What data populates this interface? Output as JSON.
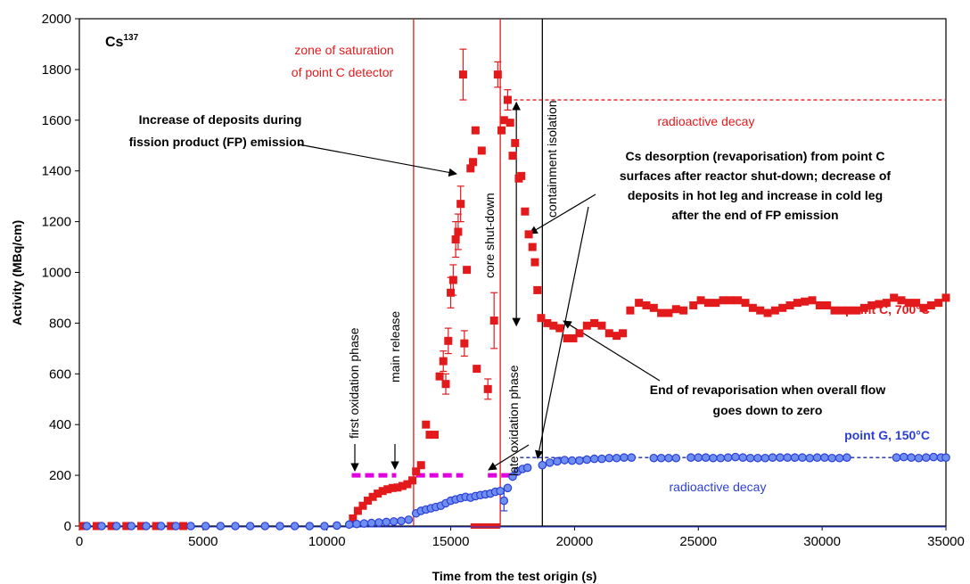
{
  "chart_data": {
    "type": "scatter",
    "title": "Cs",
    "title_superscript": "137",
    "xlabel": "Time from the test origin (s)",
    "ylabel": "Activity (MBq/cm)",
    "xlim": [
      0,
      35000
    ],
    "ylim": [
      0,
      2000
    ],
    "x_ticks": [
      0,
      5000,
      10000,
      15000,
      20000,
      25000,
      30000,
      35000
    ],
    "y_ticks": [
      0,
      200,
      400,
      600,
      800,
      1000,
      1200,
      1400,
      1600,
      1800,
      2000
    ],
    "grid": false,
    "colors": {
      "red": "#e31a1c",
      "blue": "#2b3fd6",
      "blue_fill": "#6f8ff0",
      "magenta": "#e000e0",
      "black": "#000000"
    },
    "series": [
      {
        "name": "point C, 700°C",
        "marker": "square",
        "color": "#e31a1c",
        "points": [
          [
            150,
            0
          ],
          [
            700,
            0
          ],
          [
            1300,
            0
          ],
          [
            1900,
            0
          ],
          [
            2500,
            0
          ],
          [
            3100,
            0
          ],
          [
            3700,
            0
          ],
          [
            4200,
            0
          ],
          [
            11050,
            30
          ],
          [
            11250,
            60
          ],
          [
            11450,
            80
          ],
          [
            11650,
            100
          ],
          [
            11850,
            115
          ],
          [
            12050,
            128
          ],
          [
            12250,
            138
          ],
          [
            12450,
            145
          ],
          [
            12650,
            150
          ],
          [
            12850,
            152
          ],
          [
            13050,
            158
          ],
          [
            13250,
            165
          ],
          [
            13450,
            180
          ],
          [
            13600,
            215
          ],
          [
            13800,
            240
          ],
          [
            14000,
            400
          ],
          [
            14150,
            360
          ],
          [
            14350,
            360
          ],
          [
            14550,
            590
          ],
          [
            14700,
            650
          ],
          [
            14800,
            560
          ],
          [
            14900,
            730
          ],
          [
            15000,
            920
          ],
          [
            15100,
            970
          ],
          [
            15200,
            1130
          ],
          [
            15300,
            1160
          ],
          [
            15400,
            1270
          ],
          [
            15500,
            1780
          ],
          [
            15550,
            720
          ],
          [
            15650,
            1010
          ],
          [
            15800,
            1410
          ],
          [
            15900,
            1435
          ],
          [
            16000,
            1560
          ],
          [
            16050,
            620
          ],
          [
            16250,
            1480
          ],
          [
            16500,
            540
          ],
          [
            16750,
            810
          ],
          [
            16900,
            1780
          ],
          [
            17050,
            1560
          ],
          [
            17150,
            1600
          ],
          [
            17300,
            1680
          ],
          [
            17400,
            1590
          ],
          [
            17500,
            1460
          ],
          [
            17600,
            1510
          ],
          [
            17750,
            1370
          ],
          [
            17850,
            1380
          ],
          [
            18000,
            1240
          ],
          [
            18150,
            1150
          ],
          [
            18300,
            1100
          ],
          [
            18400,
            1040
          ],
          [
            18500,
            930
          ],
          [
            18650,
            820
          ],
          [
            18900,
            800
          ],
          [
            19150,
            790
          ],
          [
            19400,
            780
          ],
          [
            19700,
            740
          ],
          [
            19950,
            740
          ],
          [
            20200,
            760
          ],
          [
            20500,
            790
          ],
          [
            20800,
            800
          ],
          [
            21100,
            790
          ],
          [
            21400,
            760
          ],
          [
            21700,
            750
          ],
          [
            21950,
            760
          ],
          [
            22250,
            850
          ],
          [
            22600,
            880
          ],
          [
            22900,
            870
          ],
          [
            23200,
            860
          ],
          [
            23500,
            840
          ],
          [
            23800,
            840
          ],
          [
            24100,
            855
          ],
          [
            24400,
            850
          ],
          [
            24800,
            870
          ],
          [
            25100,
            890
          ],
          [
            25400,
            880
          ],
          [
            25700,
            880
          ],
          [
            26000,
            890
          ],
          [
            26300,
            890
          ],
          [
            26600,
            890
          ],
          [
            26900,
            880
          ],
          [
            27200,
            860
          ],
          [
            27500,
            850
          ],
          [
            27800,
            840
          ],
          [
            28100,
            850
          ],
          [
            28400,
            860
          ],
          [
            28700,
            870
          ],
          [
            29000,
            880
          ],
          [
            29300,
            885
          ],
          [
            29600,
            890
          ],
          [
            29900,
            870
          ],
          [
            30200,
            870
          ],
          [
            30500,
            850
          ],
          [
            30800,
            850
          ],
          [
            31100,
            850
          ],
          [
            31400,
            850
          ],
          [
            31700,
            860
          ],
          [
            32000,
            870
          ],
          [
            32300,
            875
          ],
          [
            32600,
            880
          ],
          [
            32900,
            900
          ],
          [
            33200,
            890
          ],
          [
            33500,
            880
          ],
          [
            33800,
            880
          ],
          [
            34100,
            860
          ],
          [
            34400,
            870
          ],
          [
            34700,
            880
          ],
          [
            35000,
            900
          ]
        ]
      },
      {
        "name": "point G, 150°C",
        "marker": "circle",
        "color": "#2b3fd6",
        "points": [
          [
            300,
            0
          ],
          [
            900,
            0
          ],
          [
            1500,
            0
          ],
          [
            2100,
            0
          ],
          [
            2700,
            0
          ],
          [
            3300,
            0
          ],
          [
            3900,
            0
          ],
          [
            4500,
            0
          ],
          [
            5100,
            0
          ],
          [
            5700,
            0
          ],
          [
            6300,
            0
          ],
          [
            6900,
            0
          ],
          [
            7500,
            0
          ],
          [
            8100,
            0
          ],
          [
            8700,
            0
          ],
          [
            9300,
            0
          ],
          [
            9900,
            0
          ],
          [
            10400,
            2
          ],
          [
            10900,
            6
          ],
          [
            11200,
            8
          ],
          [
            11500,
            10
          ],
          [
            11800,
            12
          ],
          [
            12100,
            14
          ],
          [
            12400,
            16
          ],
          [
            12700,
            18
          ],
          [
            13000,
            20
          ],
          [
            13300,
            25
          ],
          [
            13600,
            50
          ],
          [
            13800,
            60
          ],
          [
            14000,
            65
          ],
          [
            14200,
            70
          ],
          [
            14400,
            75
          ],
          [
            14600,
            80
          ],
          [
            14800,
            90
          ],
          [
            15000,
            100
          ],
          [
            15200,
            105
          ],
          [
            15400,
            110
          ],
          [
            15600,
            115
          ],
          [
            15800,
            112
          ],
          [
            16000,
            118
          ],
          [
            16200,
            122
          ],
          [
            16400,
            125
          ],
          [
            16600,
            128
          ],
          [
            16800,
            135
          ],
          [
            17000,
            138
          ],
          [
            17150,
            100
          ],
          [
            17300,
            150
          ],
          [
            17500,
            195
          ],
          [
            17700,
            215
          ],
          [
            17900,
            225
          ],
          [
            18100,
            230
          ],
          [
            18700,
            240
          ],
          [
            19000,
            250
          ],
          [
            19300,
            255
          ],
          [
            19600,
            260
          ],
          [
            19900,
            258
          ],
          [
            20200,
            258
          ],
          [
            20500,
            262
          ],
          [
            20800,
            265
          ],
          [
            21100,
            265
          ],
          [
            21400,
            268
          ],
          [
            21700,
            268
          ],
          [
            22000,
            270
          ],
          [
            22300,
            270
          ],
          [
            23200,
            268
          ],
          [
            23500,
            268
          ],
          [
            23800,
            268
          ],
          [
            24100,
            268
          ],
          [
            24700,
            270
          ],
          [
            25000,
            270
          ],
          [
            25300,
            270
          ],
          [
            25600,
            268
          ],
          [
            25900,
            268
          ],
          [
            26200,
            270
          ],
          [
            26500,
            272
          ],
          [
            26800,
            270
          ],
          [
            27100,
            268
          ],
          [
            27400,
            268
          ],
          [
            27700,
            268
          ],
          [
            28000,
            270
          ],
          [
            28300,
            270
          ],
          [
            28600,
            270
          ],
          [
            28900,
            270
          ],
          [
            29200,
            270
          ],
          [
            29500,
            268
          ],
          [
            29800,
            270
          ],
          [
            30100,
            270
          ],
          [
            30400,
            268
          ],
          [
            30700,
            268
          ],
          [
            31000,
            270
          ],
          [
            33000,
            270
          ],
          [
            33300,
            272
          ],
          [
            33600,
            270
          ],
          [
            33900,
            268
          ],
          [
            34200,
            270
          ],
          [
            34500,
            272
          ],
          [
            34800,
            270
          ],
          [
            35000,
            270
          ]
        ]
      }
    ],
    "error_bars": [
      {
        "x": 15500,
        "y": 1780,
        "low": 1680,
        "high": 1880,
        "color": "#e31a1c"
      },
      {
        "x": 15400,
        "y": 1270,
        "low": 1200,
        "high": 1340,
        "color": "#e31a1c"
      },
      {
        "x": 15200,
        "y": 1130,
        "low": 1060,
        "high": 1200,
        "color": "#e31a1c"
      },
      {
        "x": 15300,
        "y": 1160,
        "low": 1090,
        "high": 1230,
        "color": "#e31a1c"
      },
      {
        "x": 15100,
        "y": 970,
        "low": 910,
        "high": 1030,
        "color": "#e31a1c"
      },
      {
        "x": 15000,
        "y": 920,
        "low": 860,
        "high": 980,
        "color": "#e31a1c"
      },
      {
        "x": 14900,
        "y": 730,
        "low": 680,
        "high": 780,
        "color": "#e31a1c"
      },
      {
        "x": 14700,
        "y": 650,
        "low": 610,
        "high": 690,
        "color": "#e31a1c"
      },
      {
        "x": 14800,
        "y": 560,
        "low": 520,
        "high": 600,
        "color": "#e31a1c"
      },
      {
        "x": 15550,
        "y": 720,
        "low": 670,
        "high": 770,
        "color": "#e31a1c"
      },
      {
        "x": 16750,
        "y": 810,
        "low": 700,
        "high": 920,
        "color": "#e31a1c"
      },
      {
        "x": 16500,
        "y": 540,
        "low": 500,
        "high": 580,
        "color": "#e31a1c"
      },
      {
        "x": 17300,
        "y": 1680,
        "low": 1640,
        "high": 1720,
        "color": "#e31a1c"
      },
      {
        "x": 16900,
        "y": 1780,
        "low": 1730,
        "high": 1830,
        "color": "#e31a1c"
      },
      {
        "x": 17150,
        "y": 100,
        "low": 60,
        "high": 140,
        "color": "#2b3fd6"
      }
    ],
    "magenta_dashed_segments": [
      [
        11000,
        12800
      ],
      [
        13600,
        15500
      ],
      [
        16500,
        17600
      ]
    ],
    "magenta_level": 200,
    "vertical_lines": [
      {
        "x": 13500,
        "color": "#e31a1c"
      },
      {
        "x": 17000,
        "color": "#e31a1c"
      },
      {
        "x": 18700,
        "color": "#000000"
      }
    ],
    "decay_lines": [
      {
        "x_start": 17300,
        "x_end": 35000,
        "y": 1680,
        "color": "#e31a1c",
        "style": "dotted"
      },
      {
        "x_start": 17800,
        "x_end": 35000,
        "y": 270,
        "color": "#1a2a9c",
        "style": "dotted"
      }
    ],
    "zero_band_red": [
      15800,
      17000
    ],
    "annotations": {
      "zone_line1": "zone of saturation",
      "zone_line2": "of point C detector",
      "radioactive_decay_red": "radioactive decay",
      "radioactive_decay_blue": "radioactive decay",
      "increase_line1": "Increase of deposits during",
      "increase_line2": "fission product (FP) emission",
      "desorption_line1": "Cs desorption (revaporisation) from point C",
      "desorption_line2": "surfaces after reactor shut-down; decrease of",
      "desorption_line3": "deposits in hot leg and increase in cold leg",
      "desorption_line4": "after the end of FP emission",
      "end_line1": "End of revaporisation when overall flow",
      "end_line2": "goes down to zero",
      "point_c_label": "point C, 700°C",
      "point_g_label": "point G, 150°C",
      "first_oxidation": "first oxidation phase",
      "main_release": "main release",
      "core_shutdown": "core shut-down",
      "late_oxidation": "late oxidation phase",
      "containment_isolation": "containment isolation"
    }
  }
}
